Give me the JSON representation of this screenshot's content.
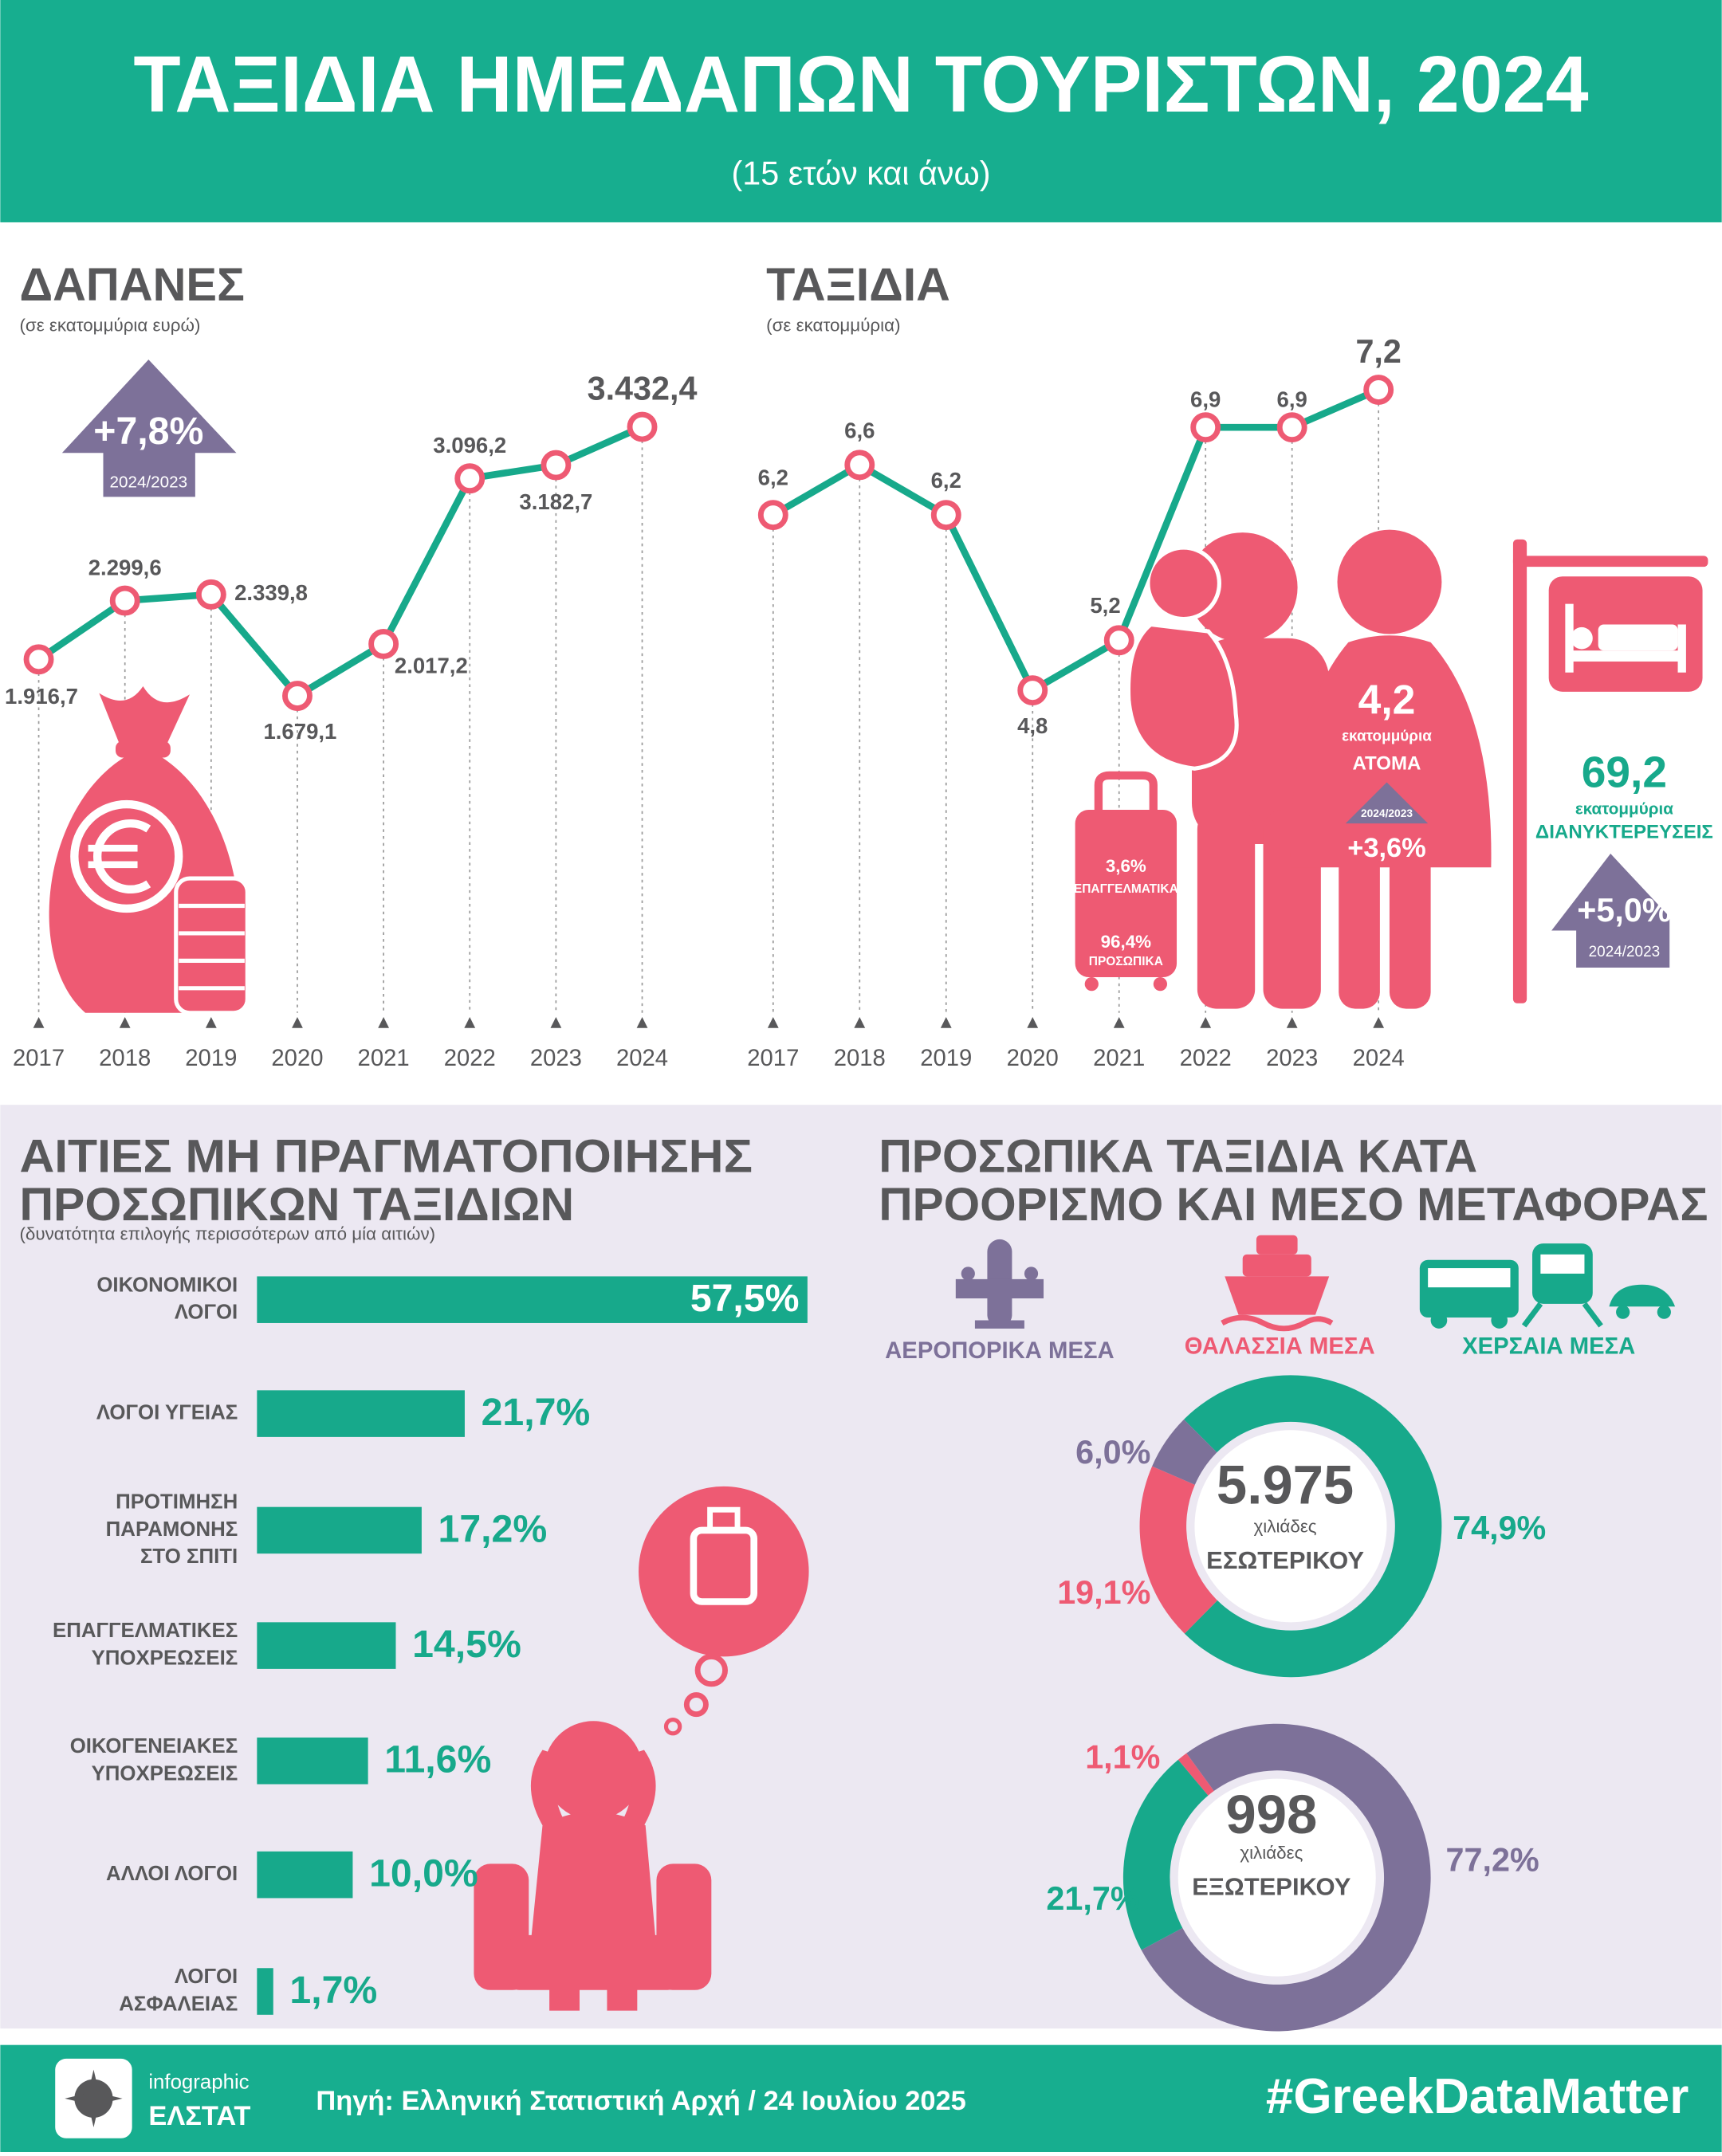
{
  "header": {
    "title": "ΤΑΞΙΔΙΑ ΗΜΕΔΑΠΩΝ ΤΟΥΡΙΣΤΩΝ, 2024",
    "subtitle": "(15 ετών και άνω)"
  },
  "chart_data": [
    {
      "type": "line",
      "title": "ΔΑΠΑΝΕΣ",
      "subtitle": "(σε εκατομμύρια ευρώ)",
      "categories": [
        "2017",
        "2018",
        "2019",
        "2020",
        "2021",
        "2022",
        "2023",
        "2024"
      ],
      "values": [
        1916.7,
        2299.6,
        2339.8,
        1679.1,
        2017.2,
        3096.2,
        3182.7,
        3432.4
      ],
      "value_labels": [
        "1.916,7",
        "2.299,6",
        "2.339,8",
        "1.679,1",
        "2.017,2",
        "3.096,2",
        "3.182,7",
        "3.432,4"
      ],
      "color": "#17a98b",
      "marker_color": "#ee5a73",
      "change": {
        "label": "+7,8%",
        "period": "2024/2023"
      }
    },
    {
      "type": "line",
      "title": "ΤΑΞΙΔΙΑ",
      "subtitle": "(σε εκατομμύρια)",
      "categories": [
        "2017",
        "2018",
        "2019",
        "2020",
        "2021",
        "2022",
        "2023",
        "2024"
      ],
      "values": [
        6.2,
        6.6,
        6.2,
        4.8,
        5.2,
        6.9,
        6.9,
        7.2
      ],
      "value_labels": [
        "6,2",
        "6,6",
        "6,2",
        "4,8",
        "5,2",
        "6,9",
        "6,9",
        "7,2"
      ],
      "color": "#17a98b",
      "marker_color": "#ee5a73"
    },
    {
      "type": "bar",
      "title": [
        "ΑΙΤΙΕΣ ΜΗ ΠΡΑΓΜΑΤΟΠΟΙΗΣΗΣ",
        "ΠΡΟΣΩΠΙΚΩΝ ΤΑΞΙΔΙΩΝ"
      ],
      "subtitle": "(δυνατότητα επιλογής περισσότερων από μία αιτιών)",
      "categories": [
        [
          "ΟΙΚΟΝΟΜΙΚΟΙ",
          "ΛΟΓΟΙ"
        ],
        [
          "ΛΟΓΟΙ ΥΓΕΙΑΣ"
        ],
        [
          "ΠΡΟΤΙΜΗΣΗ",
          "ΠΑΡΑΜΟΝΗΣ",
          "ΣΤΟ ΣΠΙΤΙ"
        ],
        [
          "ΕΠΑΓΓΕΛΜΑΤΙΚΕΣ",
          "ΥΠΟΧΡΕΩΣΕΙΣ"
        ],
        [
          "ΟΙΚΟΓΕΝΕΙΑΚΕΣ",
          "ΥΠΟΧΡΕΩΣΕΙΣ"
        ],
        [
          "ΑΛΛΟΙ ΛΟΓΟΙ"
        ],
        [
          "ΛΟΓΟΙ",
          "ΑΣΦΑΛΕΙΑΣ"
        ]
      ],
      "values": [
        57.5,
        21.7,
        17.2,
        14.5,
        11.6,
        10.0,
        1.7
      ],
      "value_labels": [
        "57,5%",
        "21,7%",
        "17,2%",
        "14,5%",
        "11,6%",
        "10,0%",
        "1,7%"
      ],
      "color": "#17a98b"
    },
    {
      "type": "donut",
      "title": [
        "ΠΡΟΣΩΠΙΚΑ ΤΑΞΙΔΙΑ ΚΑΤΑ",
        "ΠΡΟΟΡΙΣΜΟ ΚΑΙ ΜΕΣΟ ΜΕΤΑΦΟΡΑΣ"
      ],
      "categories": [
        "ΑΕΡΟΠΟΡΙΚΑ ΜΕΣΑ",
        "ΘΑΛΑΣΣΙΑ ΜΕΣΑ",
        "ΧΕΡΣΑΙΑ ΜΕΣΑ"
      ],
      "colors": [
        "#7d7199",
        "#ee5a73",
        "#17a98b"
      ],
      "series": [
        {
          "name": "ΕΣΩΤΕΡΙΚΟΥ",
          "total": {
            "value": 5975,
            "label": "5.975"
          },
          "unit": "χιλιάδες",
          "values": [
            6.0,
            19.1,
            74.9
          ],
          "value_labels": [
            "6,0%",
            "19,1%",
            "74,9%"
          ]
        },
        {
          "name": "ΕΞΩΤΕΡΙΚΟΥ",
          "total": 998,
          "unit": "χιλιάδες",
          "values": [
            77.2,
            1.1,
            21.7
          ],
          "value_labels": [
            "77,2%",
            "1,1%",
            "21,7%"
          ]
        }
      ]
    }
  ],
  "trip_details": {
    "purpose": {
      "business": "3,6%",
      "business_label": "ΕΠΑΓΓΕΛΜΑΤΙΚΑ",
      "personal": "96,4%",
      "personal_label": "ΠΡΟΣΩΠΙΚΑ"
    },
    "persons": {
      "value": "4,2",
      "unit": "εκατομμύρια",
      "label": "ΑΤΟΜΑ",
      "period": "2024/2023",
      "change": "+3,6%"
    },
    "overnights": {
      "value": "69,2",
      "unit": "εκατομμύρια",
      "label": "ΔΙΑΝΥΚΤΕΡΕΥΣΕΙΣ",
      "change": "+5,0%",
      "period": "2024/2023"
    }
  },
  "footer": {
    "brand_top": "infographic",
    "brand": "ΕΛΣΤΑΤ",
    "source": "Πηγή: Ελληνική Στατιστική Αρχή / 24 Ιουλίου 2025",
    "hashtag": "#GreekDataMatter"
  }
}
